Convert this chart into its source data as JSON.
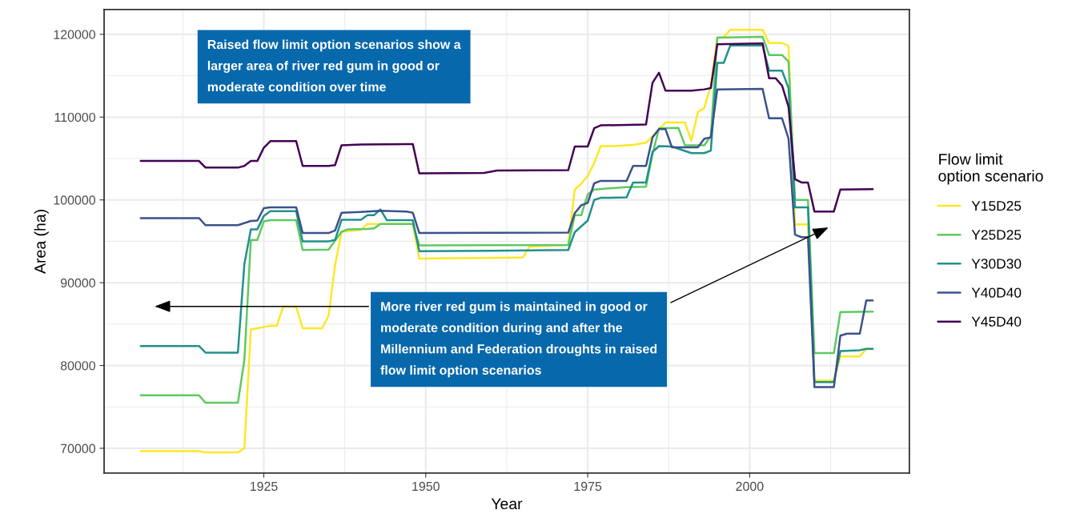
{
  "chart_data": {
    "type": "line",
    "xlabel": "Year",
    "ylabel": "Area (ha)",
    "legend_title": "Flow limit\noption scenario",
    "legend": "right",
    "grid": true,
    "xlim": [
      1900.35,
      2024.65
    ],
    "xticks": [
      1925,
      1950,
      1975,
      2000
    ],
    "ylim": [
      67000,
      123000
    ],
    "yticks": [
      70000,
      80000,
      90000,
      100000,
      110000,
      120000
    ],
    "series": [
      {
        "name": "Y15D25",
        "color": "#fde725",
        "x": [
          1906,
          1915,
          1916,
          1921,
          1922,
          1923,
          1924,
          1926,
          1927,
          1928,
          1930,
          1931,
          1934,
          1935,
          1936,
          1937,
          1940,
          1941,
          1948,
          1949,
          1961,
          1965,
          1966,
          1972,
          1973,
          1974,
          1975,
          1976,
          1977,
          1979,
          1982,
          1984,
          1985,
          1987,
          1990,
          1991,
          1992,
          1993,
          1994,
          1995,
          1996,
          1997,
          2002,
          2003,
          2005,
          2006,
          2007,
          2009,
          2010,
          2013,
          2014,
          2017,
          2018,
          2019
        ],
        "values": [
          69650,
          69650,
          69500,
          69500,
          70000,
          84350,
          84500,
          84800,
          84800,
          87100,
          87100,
          84500,
          84500,
          86000,
          92100,
          96150,
          96400,
          97100,
          97100,
          92900,
          93000,
          93050,
          94350,
          94550,
          101250,
          101950,
          102900,
          104450,
          106500,
          106500,
          106650,
          106900,
          107700,
          109350,
          109350,
          107150,
          110600,
          111100,
          113800,
          119600,
          119650,
          120550,
          120550,
          118950,
          118950,
          118600,
          97050,
          97050,
          78200,
          78200,
          81100,
          81100,
          82000,
          82000
        ]
      },
      {
        "name": "Y25D25",
        "color": "#5ec962",
        "x": [
          1906,
          1915,
          1916,
          1921,
          1922,
          1923,
          1924,
          1925,
          1926,
          1930,
          1931,
          1935,
          1937,
          1938,
          1941,
          1942,
          1943,
          1948,
          1949,
          1972,
          1973,
          1974,
          1975,
          1976,
          1981,
          1984,
          1985,
          1986,
          1989,
          1990,
          1993,
          1994,
          1995,
          2002,
          2003,
          2005,
          2006,
          2007,
          2009,
          2010,
          2013,
          2014,
          2019
        ],
        "values": [
          76400,
          76400,
          75500,
          75500,
          80650,
          95150,
          95150,
          97400,
          97550,
          97550,
          93950,
          94000,
          96150,
          96450,
          96500,
          96550,
          97100,
          97100,
          94500,
          94550,
          98150,
          98150,
          100650,
          101250,
          101550,
          101600,
          105500,
          108650,
          108700,
          106600,
          106600,
          107700,
          119600,
          119700,
          117500,
          117500,
          116700,
          100000,
          100000,
          81500,
          81500,
          86450,
          86500
        ]
      },
      {
        "name": "Y30D30",
        "color": "#21918c",
        "x": [
          1906,
          1915,
          1916,
          1921,
          1922,
          1923,
          1924,
          1925,
          1926,
          1930,
          1931,
          1935,
          1936,
          1937,
          1940,
          1941,
          1942,
          1943,
          1944,
          1948,
          1949,
          1960,
          1972,
          1973,
          1975,
          1976,
          1977,
          1981,
          1982,
          1984,
          1985,
          1986,
          1988,
          1991,
          1993,
          1994,
          1995,
          1996,
          1997,
          2002,
          2003,
          2005,
          2006,
          2007,
          2009,
          2010,
          2013,
          2014,
          2017,
          2018,
          2019
        ],
        "values": [
          82350,
          82350,
          81550,
          81550,
          92250,
          96450,
          96450,
          98050,
          98650,
          98650,
          95000,
          95000,
          95150,
          97600,
          97600,
          98150,
          98150,
          98850,
          97550,
          97550,
          93800,
          93850,
          93950,
          96100,
          97500,
          100000,
          100250,
          100300,
          102100,
          102100,
          105800,
          106500,
          106450,
          105650,
          105650,
          105950,
          116550,
          116550,
          118650,
          118650,
          115600,
          115600,
          113500,
          99100,
          99100,
          78000,
          78000,
          81750,
          81850,
          82000,
          82000
        ]
      },
      {
        "name": "Y40D40",
        "color": "#3b528b",
        "x": [
          1906,
          1915,
          1916,
          1921,
          1923,
          1924,
          1925,
          1926,
          1930,
          1931,
          1935,
          1936,
          1937,
          1940,
          1943,
          1947,
          1948,
          1949,
          1972,
          1973,
          1974,
          1975,
          1976,
          1977,
          1981,
          1982,
          1984,
          1985,
          1986,
          1987,
          1988,
          1992,
          1993,
          1994,
          1995,
          2002,
          2003,
          2005,
          2006,
          2007,
          2008,
          2009,
          2010,
          2013,
          2014,
          2015,
          2017,
          2018,
          2019
        ],
        "values": [
          97800,
          97800,
          96950,
          96950,
          97450,
          97500,
          99000,
          99100,
          99100,
          96000,
          96000,
          96300,
          98450,
          98550,
          98700,
          98600,
          98450,
          96000,
          96050,
          98400,
          99350,
          99650,
          102000,
          102300,
          102300,
          104100,
          104100,
          107550,
          108550,
          108550,
          106350,
          106350,
          107400,
          107550,
          113350,
          113400,
          109850,
          109850,
          107400,
          95800,
          95500,
          95500,
          77400,
          77400,
          83600,
          83850,
          83850,
          87850,
          87850
        ]
      },
      {
        "name": "Y45D40",
        "color": "#440154",
        "x": [
          1906,
          1915,
          1916,
          1921,
          1922,
          1923,
          1924,
          1925,
          1926,
          1930,
          1931,
          1935,
          1936,
          1937,
          1940,
          1948,
          1949,
          1959,
          1961,
          1972,
          1973,
          1975,
          1976,
          1977,
          1984,
          1985,
          1986,
          1987,
          1991,
          1993,
          1994,
          1995,
          2002,
          2003,
          2004,
          2005,
          2006,
          2007,
          2008,
          2009,
          2010,
          2013,
          2014,
          2019
        ],
        "values": [
          104700,
          104700,
          103900,
          103900,
          104100,
          104700,
          104700,
          106300,
          107100,
          107100,
          104100,
          104100,
          104200,
          106600,
          106700,
          106750,
          103200,
          103250,
          103550,
          103600,
          106450,
          106450,
          108650,
          109000,
          109100,
          114150,
          115350,
          113200,
          113200,
          113350,
          113500,
          118800,
          118900,
          114700,
          114700,
          113800,
          111250,
          102500,
          102100,
          102100,
          98600,
          98600,
          101250,
          101300
        ]
      }
    ],
    "annotations": [
      "Raised flow limit option scenarios show a\nlarger area of river red gum in good or\nmoderate condition over time",
      "More river red gum is maintained in good or\nmoderate condition during and after the\nMillennium and Federation droughts in raised\nflow limit option scenarios"
    ]
  }
}
